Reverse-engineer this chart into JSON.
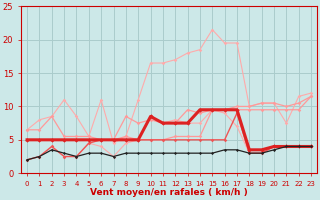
{
  "x": [
    0,
    1,
    2,
    3,
    4,
    5,
    6,
    7,
    8,
    9,
    10,
    11,
    12,
    13,
    14,
    15,
    16,
    17,
    18,
    19,
    20,
    21,
    22,
    23
  ],
  "series": [
    {
      "name": "rafales_pink_light",
      "y": [
        6.5,
        8.0,
        8.5,
        11.0,
        8.5,
        5.5,
        11.0,
        4.5,
        5.5,
        11.0,
        16.5,
        16.5,
        17.0,
        18.0,
        18.5,
        21.5,
        19.5,
        19.5,
        10.0,
        10.5,
        10.5,
        7.5,
        11.5,
        12.0
      ],
      "color": "#ffaaaa",
      "lw": 0.8,
      "marker": "D",
      "ms": 1.8,
      "zorder": 2
    },
    {
      "name": "vent_pink_light",
      "y": [
        2.0,
        2.5,
        4.0,
        2.5,
        2.5,
        4.5,
        4.0,
        2.5,
        4.5,
        5.0,
        8.5,
        7.5,
        8.0,
        7.5,
        7.5,
        9.5,
        9.0,
        7.0,
        3.0,
        3.0,
        4.0,
        4.0,
        4.0,
        4.0
      ],
      "color": "#ffaaaa",
      "lw": 0.8,
      "marker": "D",
      "ms": 1.8,
      "zorder": 2
    },
    {
      "name": "rafales_pink",
      "y": [
        6.5,
        6.5,
        8.5,
        5.5,
        5.5,
        5.5,
        5.0,
        5.0,
        5.5,
        5.0,
        5.0,
        5.0,
        5.5,
        5.5,
        5.5,
        9.5,
        9.5,
        10.0,
        10.0,
        10.5,
        10.5,
        10.0,
        10.5,
        11.5
      ],
      "color": "#ff9999",
      "lw": 0.9,
      "marker": "D",
      "ms": 1.8,
      "zorder": 3
    },
    {
      "name": "vent_med",
      "y": [
        5.0,
        5.0,
        5.0,
        5.0,
        5.0,
        5.0,
        5.0,
        5.0,
        8.5,
        7.5,
        8.0,
        7.5,
        7.5,
        9.5,
        9.0,
        9.5,
        9.5,
        9.5,
        9.5,
        9.5,
        9.5,
        9.5,
        9.5,
        11.5
      ],
      "color": "#ff9999",
      "lw": 0.9,
      "marker": "D",
      "ms": 1.8,
      "zorder": 3
    },
    {
      "name": "vent_red_main",
      "y": [
        5.0,
        5.0,
        5.0,
        5.0,
        5.0,
        5.0,
        5.0,
        5.0,
        5.0,
        5.0,
        8.5,
        7.5,
        7.5,
        7.5,
        9.5,
        9.5,
        9.5,
        9.5,
        3.5,
        3.5,
        4.0,
        4.0,
        4.0,
        4.0
      ],
      "color": "#dd2222",
      "lw": 2.2,
      "marker": "D",
      "ms": 2.2,
      "zorder": 5
    },
    {
      "name": "vent_red_light2",
      "y": [
        2.0,
        2.5,
        4.0,
        2.5,
        2.5,
        4.5,
        5.0,
        5.0,
        5.0,
        5.0,
        5.0,
        5.0,
        5.0,
        5.0,
        5.0,
        5.0,
        5.0,
        9.0,
        3.0,
        3.0,
        4.0,
        4.0,
        4.0,
        4.0
      ],
      "color": "#ee5555",
      "lw": 1.0,
      "marker": "D",
      "ms": 1.8,
      "zorder": 4
    },
    {
      "name": "black_line",
      "y": [
        2.0,
        2.5,
        3.5,
        3.0,
        2.5,
        3.0,
        3.0,
        2.5,
        3.0,
        3.0,
        3.0,
        3.0,
        3.0,
        3.0,
        3.0,
        3.0,
        3.5,
        3.5,
        3.0,
        3.0,
        3.5,
        4.0,
        4.0,
        4.0
      ],
      "color": "#222222",
      "lw": 0.9,
      "marker": "D",
      "ms": 1.6,
      "zorder": 6
    }
  ],
  "bg_color": "#cce8e8",
  "grid_color": "#aacccc",
  "xlabel": "Vent moyen/en rafales ( km/h )",
  "xlabel_color": "#cc0000",
  "xlabel_fontsize": 6.5,
  "tick_color": "#cc0000",
  "ytick_fontsize": 6,
  "xtick_fontsize": 5,
  "ylim": [
    0,
    25
  ],
  "yticks": [
    0,
    5,
    10,
    15,
    20,
    25
  ],
  "xticks": [
    0,
    1,
    2,
    3,
    4,
    5,
    6,
    7,
    8,
    9,
    10,
    11,
    12,
    13,
    14,
    15,
    16,
    17,
    18,
    19,
    20,
    21,
    22,
    23
  ]
}
